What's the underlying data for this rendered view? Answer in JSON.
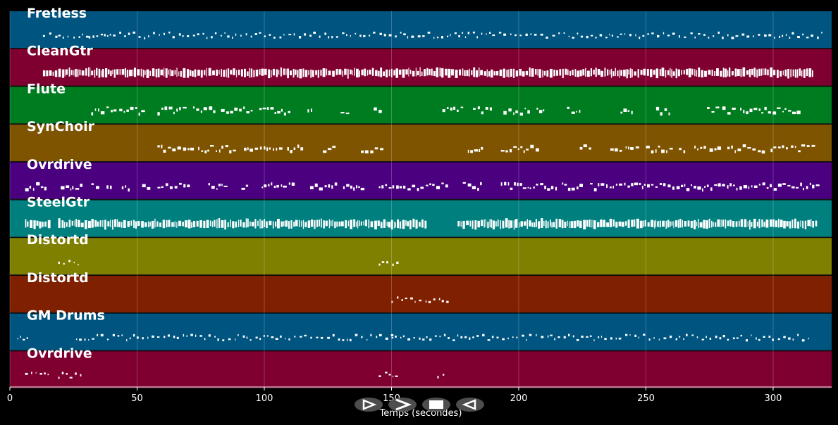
{
  "chart_data": {
    "type": "piano-roll",
    "xlabel": "Temps (secondes)",
    "xlim": [
      0,
      323
    ],
    "x_ticks": [
      0,
      50,
      100,
      150,
      200,
      250,
      300
    ],
    "x_tick_labels": [
      "0",
      "50",
      "100",
      "150",
      "200",
      "250",
      "300"
    ],
    "grid": "vertical",
    "tracks": [
      {
        "name": "Fretless",
        "color": "#005480",
        "segments": [
          [
            13,
            18
          ],
          [
            19,
            24
          ],
          [
            25,
            30
          ],
          [
            31,
            36
          ],
          [
            37,
            320
          ]
        ],
        "density": "sparse"
      },
      {
        "name": "CleanGtr",
        "color": "#7f0030",
        "segments": [
          [
            13,
            316
          ]
        ],
        "density": "dense"
      },
      {
        "name": "Flute",
        "color": "#007c20",
        "segments": [
          [
            32,
            41
          ],
          [
            43,
            53
          ],
          [
            58,
            70
          ],
          [
            72,
            80
          ],
          [
            83,
            95
          ],
          [
            98,
            110
          ],
          [
            117,
            119
          ],
          [
            130,
            133
          ],
          [
            143,
            146
          ],
          [
            170,
            178
          ],
          [
            182,
            190
          ],
          [
            194,
            205
          ],
          [
            207,
            210
          ],
          [
            219,
            224
          ],
          [
            240,
            245
          ],
          [
            254,
            260
          ],
          [
            274,
            278
          ],
          [
            280,
            284
          ],
          [
            287,
            310
          ]
        ],
        "density": "medium"
      },
      {
        "name": "SynChoir",
        "color": "#7f5400",
        "segments": [
          [
            58,
            72
          ],
          [
            74,
            88
          ],
          [
            92,
            107
          ],
          [
            109,
            116
          ],
          [
            123,
            127
          ],
          [
            138,
            146
          ],
          [
            180,
            186
          ],
          [
            193,
            207
          ],
          [
            224,
            228
          ],
          [
            236,
            241
          ],
          [
            242,
            247
          ],
          [
            250,
            255
          ],
          [
            256,
            260
          ],
          [
            263,
            266
          ],
          [
            269,
            273
          ],
          [
            275,
            280
          ],
          [
            282,
            286
          ],
          [
            288,
            292
          ],
          [
            294,
            297
          ],
          [
            299,
            305
          ],
          [
            307,
            317
          ]
        ],
        "density": "medium"
      },
      {
        "name": "Ovrdrive",
        "color": "#4b007f",
        "segments": [
          [
            6,
            15
          ],
          [
            20,
            28
          ],
          [
            32,
            35
          ],
          [
            38,
            40
          ],
          [
            44,
            47
          ],
          [
            52,
            55
          ],
          [
            58,
            71
          ],
          [
            78,
            86
          ],
          [
            91,
            93
          ],
          [
            99,
            112
          ],
          [
            118,
            128
          ],
          [
            131,
            139
          ],
          [
            145,
            172
          ],
          [
            178,
            186
          ],
          [
            193,
            215
          ],
          [
            217,
            224
          ],
          [
            228,
            317
          ]
        ],
        "density": "medium"
      },
      {
        "name": "SteelGtr",
        "color": "#007f7f",
        "segments": [
          [
            6,
            15
          ],
          [
            19,
            32
          ],
          [
            32,
            164
          ],
          [
            176,
            317
          ]
        ],
        "density": "dense"
      },
      {
        "name": "Distortd",
        "color": "#7f7f00",
        "segments": [
          [
            19,
            28
          ],
          [
            145,
            153
          ]
        ],
        "density": "sparse"
      },
      {
        "name": "Distortd",
        "color": "#7f2000",
        "segments": [
          [
            150,
            172
          ]
        ],
        "density": "sparse"
      },
      {
        "name": "GM Drums",
        "color": "#005480",
        "segments": [
          [
            3,
            7
          ],
          [
            26,
            150
          ],
          [
            150,
            315
          ]
        ],
        "density": "sparse"
      },
      {
        "name": "Ovrdrive",
        "color": "#7f0030",
        "segments": [
          [
            6,
            15
          ],
          [
            19,
            28
          ],
          [
            145,
            153
          ],
          [
            168,
            172
          ]
        ],
        "density": "sparse"
      }
    ]
  },
  "controls": [
    {
      "name": "play-icon",
      "glyph": "play"
    },
    {
      "name": "fast-forward-icon",
      "glyph": "forward"
    },
    {
      "name": "stop-icon",
      "glyph": "stop"
    },
    {
      "name": "rewind-icon",
      "glyph": "back"
    }
  ]
}
